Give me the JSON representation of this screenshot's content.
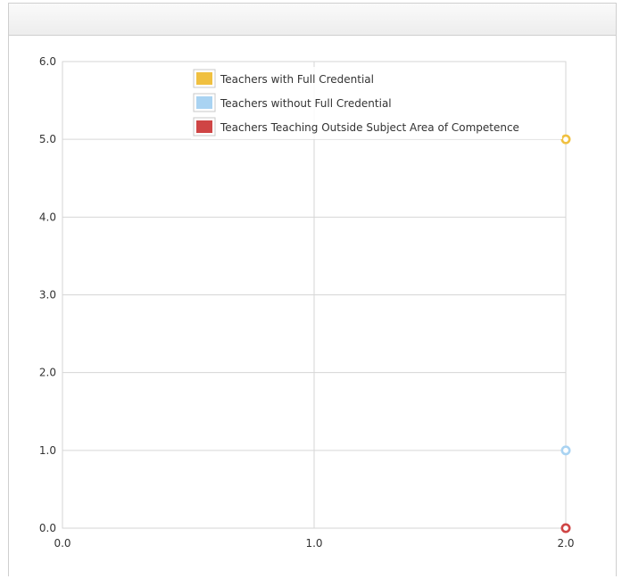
{
  "chart_data": {
    "type": "scatter",
    "title": "",
    "xlabel": "",
    "ylabel": "",
    "xlim": [
      0,
      2
    ],
    "ylim": [
      0,
      6
    ],
    "x_ticks": [
      "0.0",
      "1.0",
      "2.0"
    ],
    "y_ticks": [
      "0.0",
      "1.0",
      "2.0",
      "3.0",
      "4.0",
      "5.0",
      "6.0"
    ],
    "grid": true,
    "legend_position": "top-center",
    "series": [
      {
        "name": "Teachers with Full Credential",
        "color": "#f0c040",
        "points": [
          {
            "x": 2,
            "y": 5
          }
        ]
      },
      {
        "name": "Teachers without Full Credential",
        "color": "#a9d3f2",
        "points": [
          {
            "x": 2,
            "y": 1
          }
        ]
      },
      {
        "name": "Teachers Teaching Outside Subject Area of Competence",
        "color": "#cf4545",
        "points": [
          {
            "x": 2,
            "y": 0
          }
        ]
      }
    ]
  }
}
